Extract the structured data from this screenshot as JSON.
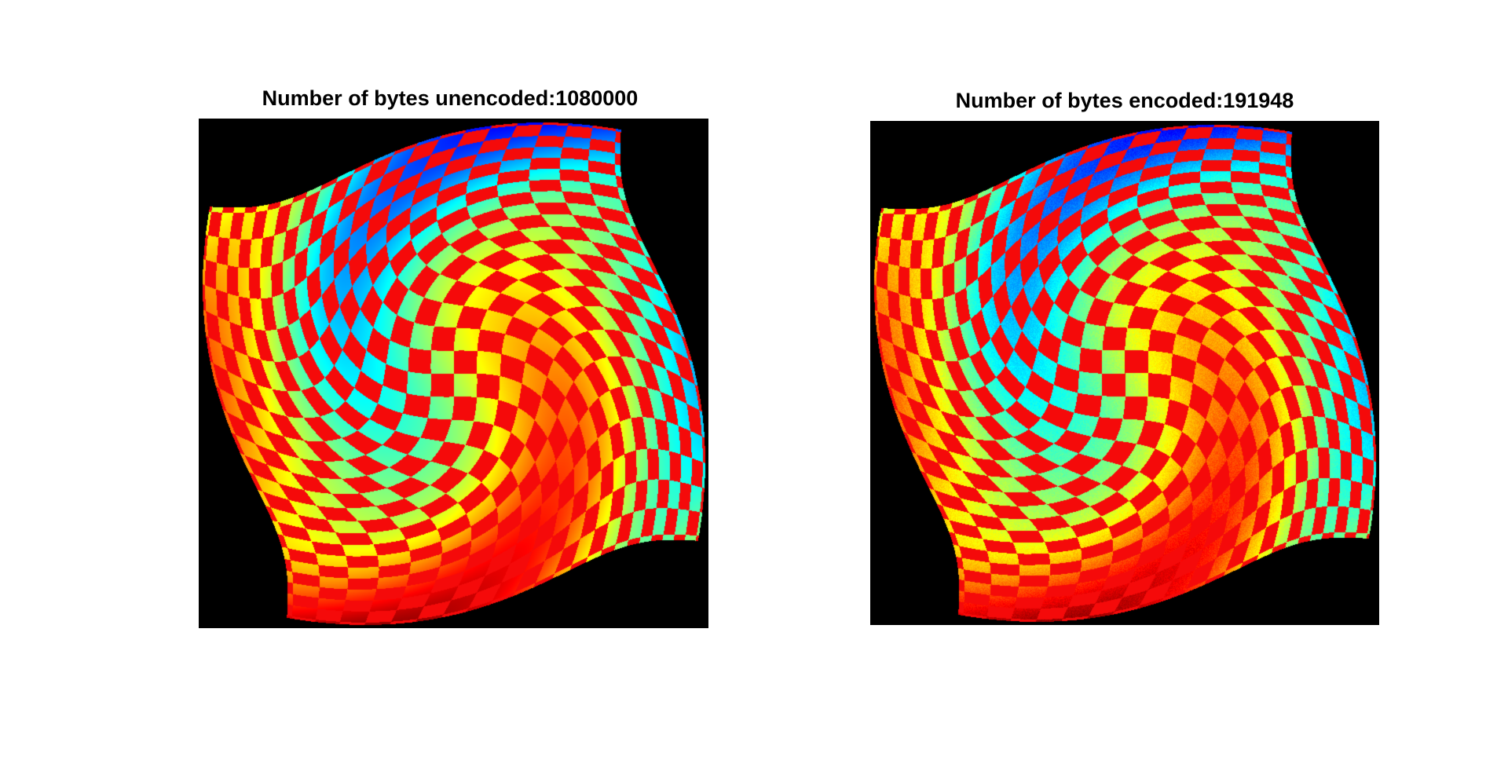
{
  "figure": {
    "panels": [
      {
        "title": "Number of bytes unencoded:1080000",
        "image": {
          "description_name": "swirled-checkerboard-jet-colormap",
          "variant": "original"
        }
      },
      {
        "title": "Number of bytes encoded:191948",
        "image": {
          "description_name": "swirled-checkerboard-jet-colormap",
          "variant": "compressed"
        }
      }
    ]
  },
  "colors": {
    "background": "#ffffff",
    "axes_background": "#000000"
  }
}
